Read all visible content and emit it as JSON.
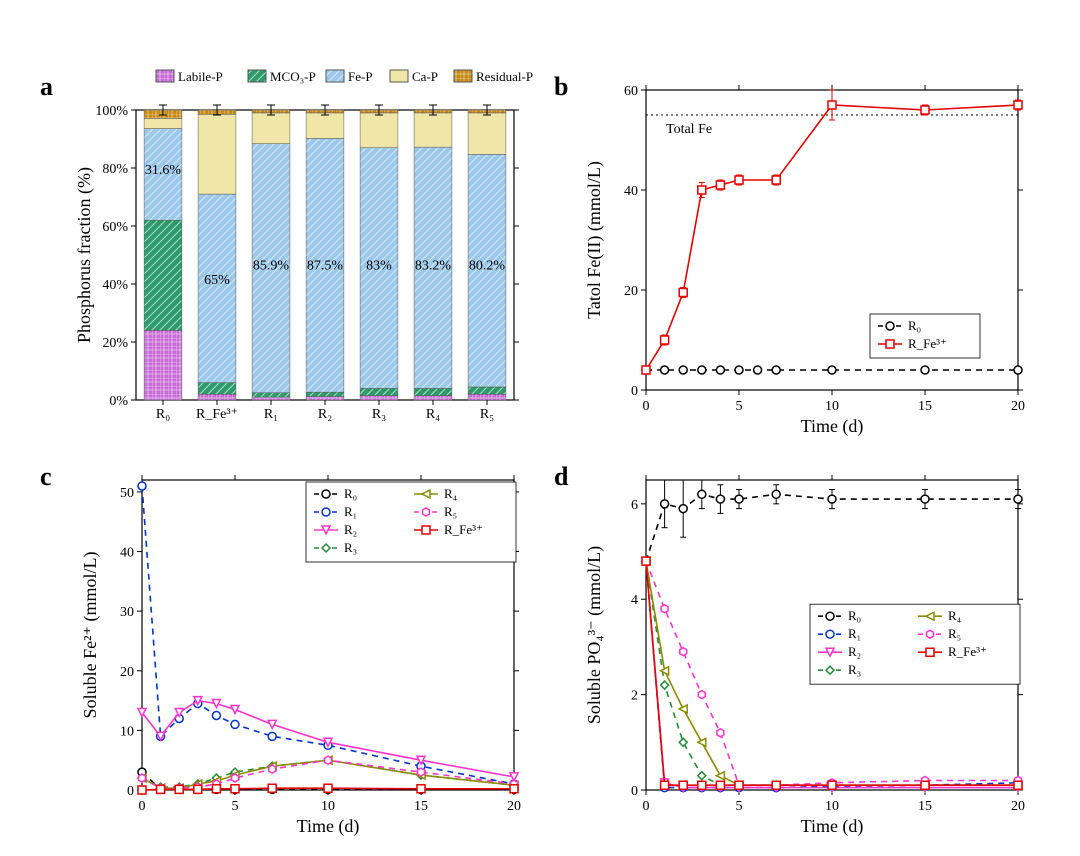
{
  "figure": {
    "background": "#ffffff",
    "font_family": "Times New Roman, serif",
    "panel_label_fontsize": 26,
    "axis_label_fontsize": 18,
    "tick_fontsize": 14,
    "legend_fontsize": 13
  },
  "palette": {
    "labile": "#c86dd7",
    "mco3": "#2e9b6b",
    "fep": "#9cc8ea",
    "cap": "#f0e6a8",
    "residual": "#c78a15",
    "black": "#000000",
    "red": "#e60000",
    "blue": "#0033cc",
    "magenta": "#ff33cc",
    "green": "#258b3a",
    "olive": "#8b8b00",
    "grid": "#bfbfbf"
  },
  "panel_a": {
    "label": "a",
    "type": "stacked-bar",
    "ylabel": "Phosphorus fraction (%)",
    "ylim": [
      0,
      100
    ],
    "ytick_step": 20,
    "ytick_suffix": "%",
    "categories": [
      "R₀",
      "R_Fe³⁺",
      "R₁",
      "R₂",
      "R₃",
      "R₄",
      "R₅"
    ],
    "legend": [
      {
        "name": "Labile-P",
        "color": "#c86dd7",
        "hatch": "grid"
      },
      {
        "name": "MCO₃-P",
        "color": "#2e9b6b",
        "hatch": "diag"
      },
      {
        "name": "Fe-P",
        "color": "#9cc8ea",
        "hatch": "diag"
      },
      {
        "name": "Ca-P",
        "color": "#f0e6a8",
        "hatch": "none"
      },
      {
        "name": "Residual-P",
        "color": "#c78a15",
        "hatch": "grid"
      }
    ],
    "stacks": [
      {
        "labile": 24.0,
        "mco3": 38.0,
        "fep": 31.6,
        "cap": 3.5,
        "residual": 2.9
      },
      {
        "labile": 2.0,
        "mco3": 4.0,
        "fep": 65.0,
        "cap": 27.5,
        "residual": 1.5
      },
      {
        "labile": 1.0,
        "mco3": 1.5,
        "fep": 85.9,
        "cap": 10.6,
        "residual": 1.0
      },
      {
        "labile": 1.2,
        "mco3": 1.5,
        "fep": 87.5,
        "cap": 8.8,
        "residual": 1.0
      },
      {
        "labile": 1.5,
        "mco3": 2.5,
        "fep": 83.0,
        "cap": 12.0,
        "residual": 1.0
      },
      {
        "labile": 1.5,
        "mco3": 2.5,
        "fep": 83.2,
        "cap": 11.8,
        "residual": 1.0
      },
      {
        "labile": 2.0,
        "mco3": 2.5,
        "fep": 80.2,
        "cap": 14.3,
        "residual": 1.0
      }
    ],
    "annotations": [
      {
        "cat": 0,
        "y": 78,
        "text": "31.6%"
      },
      {
        "cat": 1,
        "y": 40,
        "text": "65%"
      },
      {
        "cat": 2,
        "y": 45,
        "text": "85.9%"
      },
      {
        "cat": 3,
        "y": 45,
        "text": "87.5%"
      },
      {
        "cat": 4,
        "y": 45,
        "text": "83%"
      },
      {
        "cat": 5,
        "y": 45,
        "text": "83.2%"
      },
      {
        "cat": 6,
        "y": 45,
        "text": "80.2%"
      }
    ],
    "bar_width": 0.7,
    "error_bar_halfwidth": 6,
    "error_example": 1.5
  },
  "panel_b": {
    "label": "b",
    "type": "line",
    "xlabel": "Time (d)",
    "ylabel": "Tatol Fe(II) (mmol/L)",
    "xlim": [
      0,
      20
    ],
    "ylim": [
      0,
      60
    ],
    "xtick_step": 5,
    "ytick_step": 20,
    "total_fe_ref": {
      "y": 55,
      "label": "Total Fe",
      "linestyle": "dotted",
      "color": "#000000"
    },
    "series": [
      {
        "name": "R₀",
        "color": "#000000",
        "linestyle": "dashed",
        "marker": "circle",
        "x": [
          0,
          1,
          2,
          3,
          4,
          5,
          6,
          7,
          10,
          15,
          20
        ],
        "y": [
          4,
          4,
          4,
          4,
          4,
          4,
          4,
          4,
          4,
          4,
          4
        ]
      },
      {
        "name": "R_Fe³⁺",
        "color": "#e60000",
        "linestyle": "solid",
        "marker": "square",
        "x": [
          0,
          1,
          2,
          3,
          4,
          5,
          7,
          10,
          15,
          20
        ],
        "y": [
          4,
          10,
          19.5,
          40,
          41,
          42,
          42,
          57,
          56,
          57
        ],
        "yerr": [
          0,
          1,
          1,
          1.5,
          1,
          1,
          1,
          3,
          1,
          1
        ]
      }
    ],
    "legend_pos": "bottom-right"
  },
  "panel_c": {
    "label": "c",
    "type": "line",
    "xlabel": "Time (d)",
    "ylabel": "Soluble Fe²⁺ (mmol/L)",
    "xlim": [
      0,
      20
    ],
    "ylim": [
      0,
      52
    ],
    "xtick_step": 5,
    "ytick_step": 10,
    "series": [
      {
        "name": "R₀",
        "color": "#000000",
        "linestyle": "dashed",
        "marker": "circle",
        "x": [
          0,
          1,
          2,
          3,
          4,
          5,
          7,
          10,
          15,
          20
        ],
        "y": [
          3,
          0.1,
          0.1,
          0.1,
          0.1,
          0.1,
          0.1,
          0.1,
          0.1,
          0.1
        ]
      },
      {
        "name": "R₁",
        "color": "#0033cc",
        "linestyle": "dashed",
        "marker": "circle",
        "x": [
          0,
          1,
          2,
          3,
          4,
          5,
          7,
          10,
          15,
          20
        ],
        "y": [
          51,
          9,
          12,
          14.5,
          12.5,
          11,
          9,
          7.5,
          4,
          1
        ]
      },
      {
        "name": "R₂",
        "color": "#ff33cc",
        "linestyle": "solid",
        "marker": "triangle-down",
        "x": [
          0,
          1,
          2,
          3,
          4,
          5,
          7,
          10,
          15,
          20
        ],
        "y": [
          13,
          9,
          13,
          15,
          14.5,
          13.5,
          11,
          8,
          5,
          2.2
        ]
      },
      {
        "name": "R₃",
        "color": "#258b3a",
        "linestyle": "dashed",
        "marker": "diamond",
        "x": [
          0,
          1,
          2,
          3,
          4,
          5,
          7,
          10,
          15,
          20
        ],
        "y": [
          2,
          0.5,
          0.5,
          1,
          2,
          3,
          4,
          5,
          2.5,
          0.8
        ]
      },
      {
        "name": "R₄",
        "color": "#8b8b00",
        "linestyle": "solid",
        "marker": "triangle-left",
        "x": [
          0,
          1,
          2,
          3,
          4,
          5,
          7,
          10,
          15,
          20
        ],
        "y": [
          2,
          0.3,
          0.3,
          1,
          1.5,
          2.5,
          4,
          5,
          2.5,
          0.8
        ]
      },
      {
        "name": "R₅",
        "color": "#ff33cc",
        "linestyle": "dashed",
        "marker": "hexagon",
        "x": [
          0,
          1,
          2,
          3,
          4,
          5,
          7,
          10,
          15,
          20
        ],
        "y": [
          2,
          0.3,
          0.3,
          0.5,
          1,
          2,
          3.5,
          5,
          3,
          1
        ]
      },
      {
        "name": "R_Fe³⁺",
        "color": "#e60000",
        "linestyle": "solid",
        "marker": "square",
        "x": [
          0,
          1,
          2,
          3,
          4,
          5,
          7,
          10,
          15,
          20
        ],
        "y": [
          0,
          0.1,
          0.1,
          0.1,
          0.2,
          0.2,
          0.3,
          0.3,
          0.2,
          0.2
        ]
      }
    ],
    "legend_pos": "top-right",
    "legend_cols": 2
  },
  "panel_d": {
    "label": "d",
    "type": "line",
    "xlabel": "Time (d)",
    "ylabel": "Soluble PO₄³⁻ (mmol/L)",
    "xlim": [
      0,
      20
    ],
    "ylim": [
      0,
      6.5
    ],
    "xtick_step": 5,
    "ytick_step": 2,
    "series": [
      {
        "name": "R₀",
        "color": "#000000",
        "linestyle": "dashed",
        "marker": "circle",
        "x": [
          0,
          1,
          2,
          3,
          4,
          5,
          7,
          10,
          15,
          20
        ],
        "y": [
          4.8,
          6.0,
          5.9,
          6.2,
          6.1,
          6.1,
          6.2,
          6.1,
          6.1,
          6.1
        ],
        "yerr": [
          0,
          0.5,
          0.6,
          0.3,
          0.3,
          0.2,
          0.2,
          0.2,
          0.2,
          0.2
        ]
      },
      {
        "name": "R₁",
        "color": "#0033cc",
        "linestyle": "dashed",
        "marker": "circle",
        "x": [
          0,
          1,
          2,
          3,
          4,
          5,
          7,
          10,
          15,
          20
        ],
        "y": [
          4.8,
          0.05,
          0.05,
          0.05,
          0.05,
          0.05,
          0.05,
          0.08,
          0.1,
          0.15
        ]
      },
      {
        "name": "R₂",
        "color": "#ff33cc",
        "linestyle": "solid",
        "marker": "triangle-down",
        "x": [
          0,
          1,
          2,
          3,
          4,
          5,
          7,
          10,
          15,
          20
        ],
        "y": [
          4.8,
          0.15,
          0.05,
          0.05,
          0.05,
          0.05,
          0.05,
          0.05,
          0.05,
          0.05
        ]
      },
      {
        "name": "R₃",
        "color": "#258b3a",
        "linestyle": "dashed",
        "marker": "diamond",
        "x": [
          0,
          1,
          2,
          3,
          4,
          5,
          7,
          10,
          15,
          20
        ],
        "y": [
          4.8,
          2.2,
          1.0,
          0.3,
          0.1,
          0.1,
          0.1,
          0.1,
          0.1,
          0.1
        ]
      },
      {
        "name": "R₄",
        "color": "#8b8b00",
        "linestyle": "solid",
        "marker": "triangle-left",
        "x": [
          0,
          1,
          2,
          3,
          4,
          5,
          7,
          10,
          15,
          20
        ],
        "y": [
          4.8,
          2.5,
          1.7,
          1.0,
          0.3,
          0.1,
          0.1,
          0.1,
          0.1,
          0.1
        ]
      },
      {
        "name": "R₅",
        "color": "#ff33cc",
        "linestyle": "dashed",
        "marker": "hexagon",
        "x": [
          0,
          1,
          2,
          3,
          4,
          5,
          7,
          10,
          15,
          20
        ],
        "y": [
          4.8,
          3.8,
          2.9,
          2.0,
          1.2,
          0.1,
          0.1,
          0.15,
          0.2,
          0.2
        ]
      },
      {
        "name": "R_Fe³⁺",
        "color": "#e60000",
        "linestyle": "solid",
        "marker": "square",
        "x": [
          0,
          1,
          2,
          3,
          4,
          5,
          7,
          10,
          15,
          20
        ],
        "y": [
          4.8,
          0.1,
          0.1,
          0.1,
          0.1,
          0.1,
          0.1,
          0.1,
          0.1,
          0.1
        ]
      }
    ],
    "legend_pos": "middle-right",
    "legend_cols": 2
  }
}
